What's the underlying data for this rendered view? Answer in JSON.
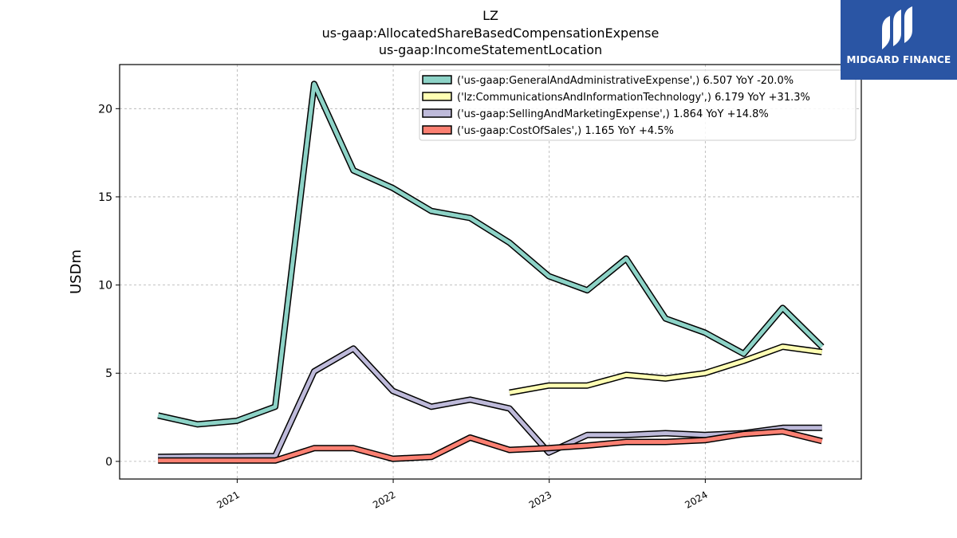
{
  "title": [
    "LZ",
    "us-gaap:AllocatedShareBasedCompensationExpense",
    "us-gaap:IncomeStatementLocation"
  ],
  "logo": {
    "text": "MIDGARD FINANCE",
    "color": "#2a55a4"
  },
  "chart_data": {
    "type": "line",
    "ylabel": "USDm",
    "xlabel": "",
    "xlim": [
      "2020-04-01",
      "2024-12-31"
    ],
    "ylim": [
      -1.0,
      22.5
    ],
    "yticks": [
      0,
      5,
      10,
      15,
      20
    ],
    "xticks": [
      {
        "date": "2021-01-01",
        "label": "2021"
      },
      {
        "date": "2022-01-01",
        "label": "2022"
      },
      {
        "date": "2023-01-01",
        "label": "2023"
      },
      {
        "date": "2024-01-01",
        "label": "2024"
      }
    ],
    "grid": true,
    "legend_position": "top-right",
    "series": [
      {
        "name": "('us-gaap:GeneralAndAdministrativeExpense',) 6.507 YoY -20.0%",
        "color": "#8dd3c7",
        "points": [
          [
            "2020-06-30",
            2.6
          ],
          [
            "2020-09-30",
            2.1
          ],
          [
            "2020-12-31",
            2.3
          ],
          [
            "2021-03-31",
            3.1
          ],
          [
            "2021-06-30",
            21.4
          ],
          [
            "2021-09-30",
            16.5
          ],
          [
            "2021-12-31",
            15.5
          ],
          [
            "2022-03-31",
            14.2
          ],
          [
            "2022-06-30",
            13.8
          ],
          [
            "2022-09-30",
            12.4
          ],
          [
            "2022-12-31",
            10.5
          ],
          [
            "2023-03-31",
            9.7
          ],
          [
            "2023-06-30",
            11.5
          ],
          [
            "2023-09-30",
            8.1
          ],
          [
            "2023-12-31",
            7.3
          ],
          [
            "2024-03-31",
            6.1
          ],
          [
            "2024-06-30",
            8.7
          ],
          [
            "2024-09-30",
            6.5
          ]
        ]
      },
      {
        "name": "('lz:CommunicationsAndInformationTechnology',) 6.179 YoY +31.3%",
        "color": "#ffffb3",
        "points": [
          [
            "2022-09-30",
            3.9
          ],
          [
            "2022-12-31",
            4.3
          ],
          [
            "2023-03-31",
            4.3
          ],
          [
            "2023-06-30",
            4.9
          ],
          [
            "2023-09-30",
            4.7
          ],
          [
            "2023-12-31",
            5.0
          ],
          [
            "2024-03-31",
            5.7
          ],
          [
            "2024-06-30",
            6.5
          ],
          [
            "2024-09-30",
            6.2
          ]
        ]
      },
      {
        "name": "('us-gaap:SellingAndMarketingExpense',) 1.864 YoY +14.8%",
        "color": "#bebada",
        "points": [
          [
            "2020-06-30",
            0.25
          ],
          [
            "2020-09-30",
            0.28
          ],
          [
            "2020-12-31",
            0.28
          ],
          [
            "2021-03-31",
            0.3
          ],
          [
            "2021-06-30",
            5.1
          ],
          [
            "2021-09-30",
            6.4
          ],
          [
            "2021-12-31",
            4.0
          ],
          [
            "2022-03-31",
            3.1
          ],
          [
            "2022-06-30",
            3.5
          ],
          [
            "2022-09-30",
            3.0
          ],
          [
            "2022-12-31",
            0.5
          ],
          [
            "2023-03-31",
            1.5
          ],
          [
            "2023-06-30",
            1.5
          ],
          [
            "2023-09-30",
            1.6
          ],
          [
            "2023-12-31",
            1.5
          ],
          [
            "2024-03-31",
            1.6
          ],
          [
            "2024-06-30",
            1.9
          ],
          [
            "2024-09-30",
            1.9
          ]
        ]
      },
      {
        "name": "('us-gaap:CostOfSales',) 1.165 YoY +4.5%",
        "color": "#fb8072",
        "points": [
          [
            "2020-06-30",
            0.05
          ],
          [
            "2020-09-30",
            0.05
          ],
          [
            "2020-12-31",
            0.05
          ],
          [
            "2021-03-31",
            0.05
          ],
          [
            "2021-06-30",
            0.75
          ],
          [
            "2021-09-30",
            0.75
          ],
          [
            "2021-12-31",
            0.15
          ],
          [
            "2022-03-31",
            0.25
          ],
          [
            "2022-06-30",
            1.35
          ],
          [
            "2022-09-30",
            0.65
          ],
          [
            "2022-12-31",
            0.75
          ],
          [
            "2023-03-31",
            0.9
          ],
          [
            "2023-06-30",
            1.1
          ],
          [
            "2023-09-30",
            1.1
          ],
          [
            "2023-12-31",
            1.2
          ],
          [
            "2024-03-31",
            1.55
          ],
          [
            "2024-06-30",
            1.7
          ],
          [
            "2024-09-30",
            1.15
          ]
        ]
      }
    ]
  }
}
